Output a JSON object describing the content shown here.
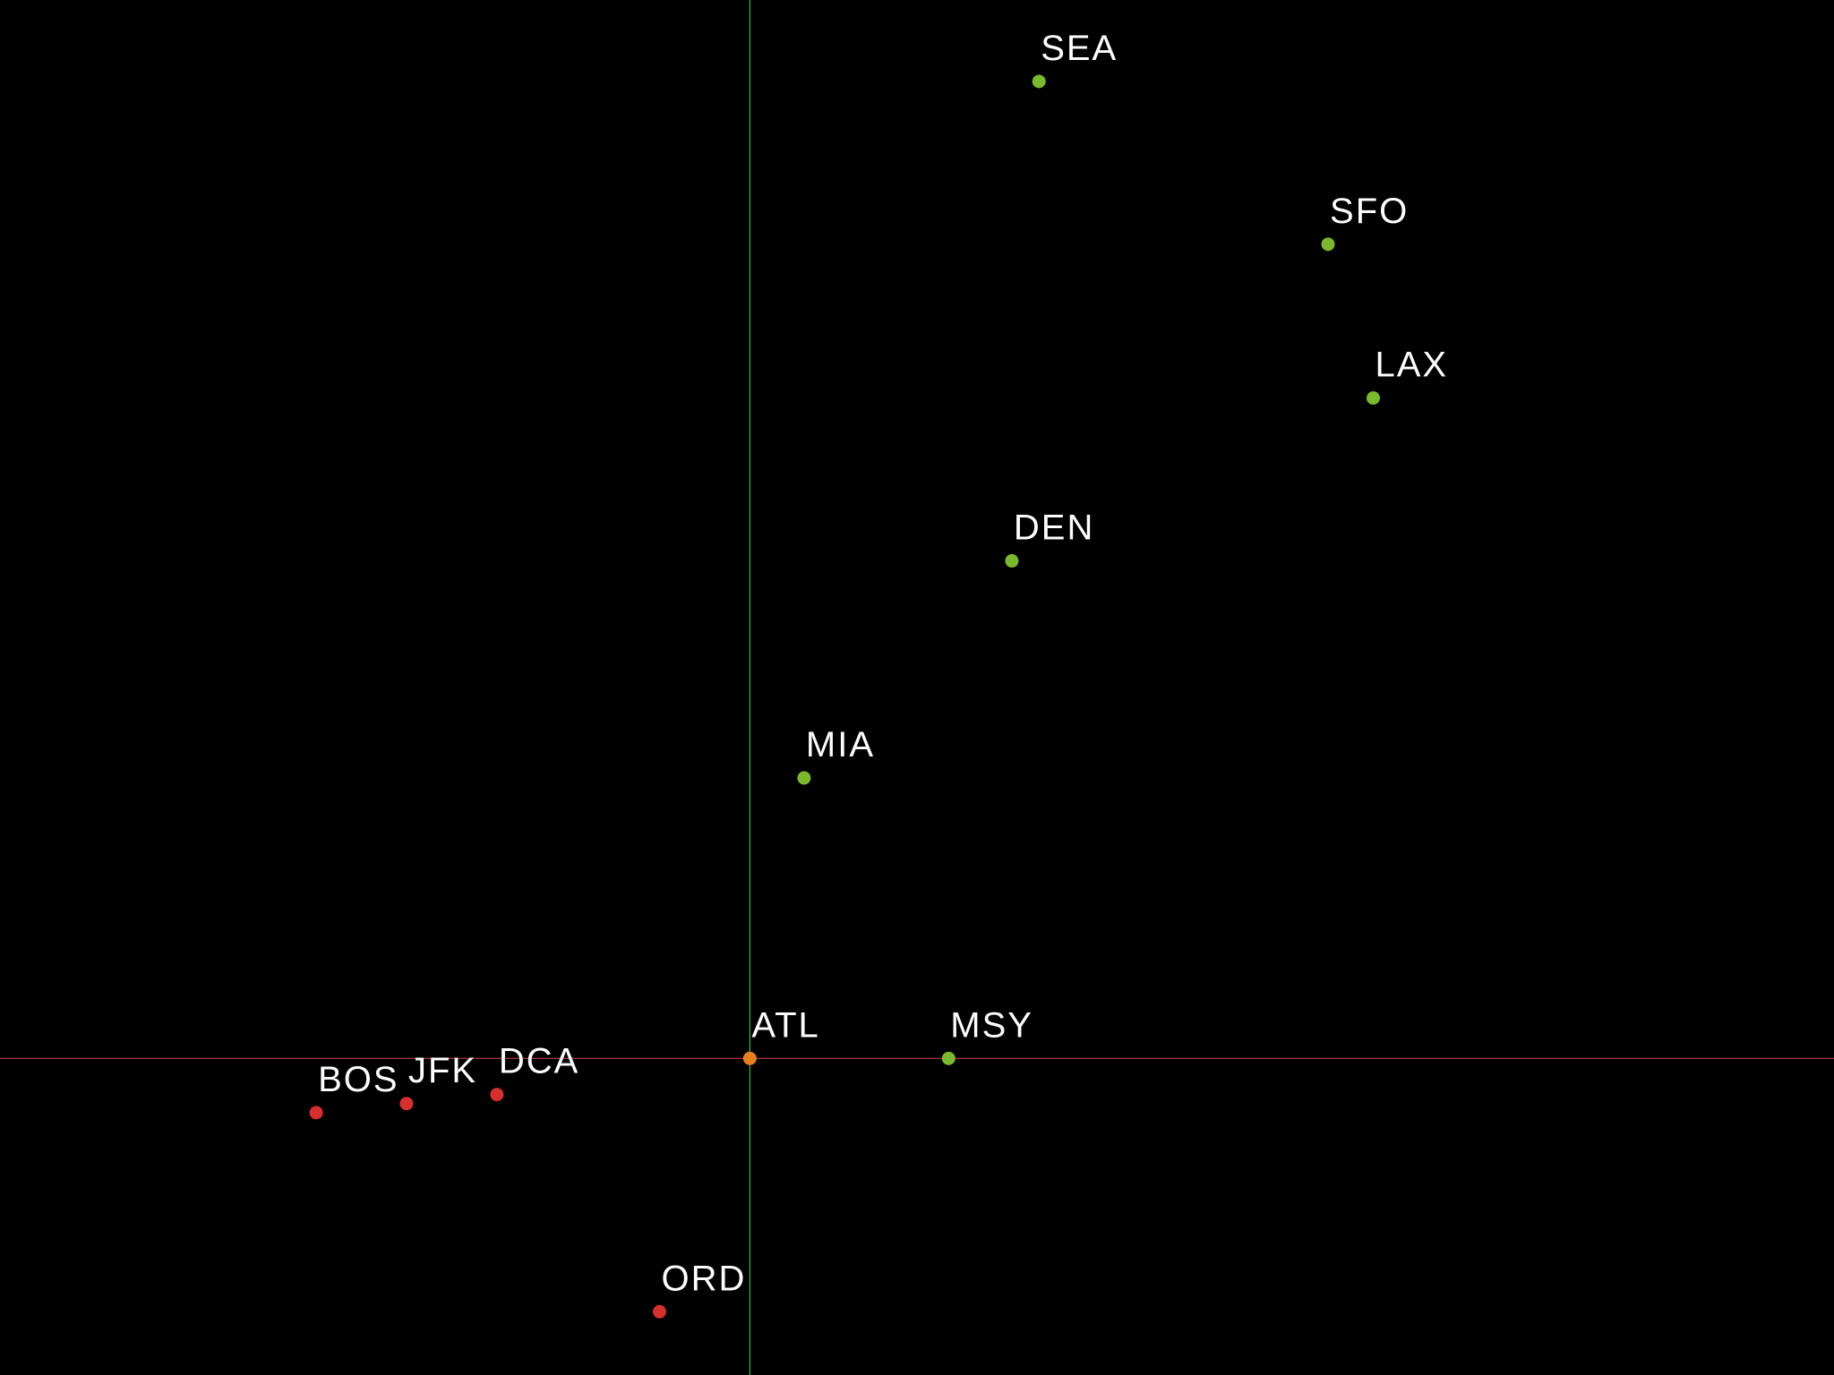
{
  "chart_data": {
    "type": "scatter",
    "title": "",
    "xlabel": "",
    "ylabel": "",
    "xlim": [
      -8.3,
      12.0
    ],
    "ylim": [
      -3.5,
      11.7
    ],
    "grid": false,
    "legend": "none",
    "axes": {
      "x_axis_color": "#c0393b",
      "y_axis_color": "#4caf50"
    },
    "colors": {
      "background": "#000000",
      "origin": "#e67e22",
      "positive_x": "#7cb82f",
      "negative_x": "#d62f2f",
      "label": "#ffffff"
    },
    "points": [
      {
        "label": "SEA",
        "x": 3.2,
        "y": 10.8
      },
      {
        "label": "SFO",
        "x": 6.4,
        "y": 9.0
      },
      {
        "label": "LAX",
        "x": 6.9,
        "y": 7.3
      },
      {
        "label": "DEN",
        "x": 2.9,
        "y": 5.5
      },
      {
        "label": "MIA",
        "x": 0.6,
        "y": 3.1
      },
      {
        "label": "ATL",
        "x": 0.0,
        "y": 0.0
      },
      {
        "label": "MSY",
        "x": 2.2,
        "y": 0.0
      },
      {
        "label": "BOS",
        "x": -4.8,
        "y": -0.6
      },
      {
        "label": "JFK",
        "x": -3.8,
        "y": -0.5
      },
      {
        "label": "DCA",
        "x": -2.8,
        "y": -0.4
      },
      {
        "label": "ORD",
        "x": -1.0,
        "y": -2.8
      }
    ]
  }
}
